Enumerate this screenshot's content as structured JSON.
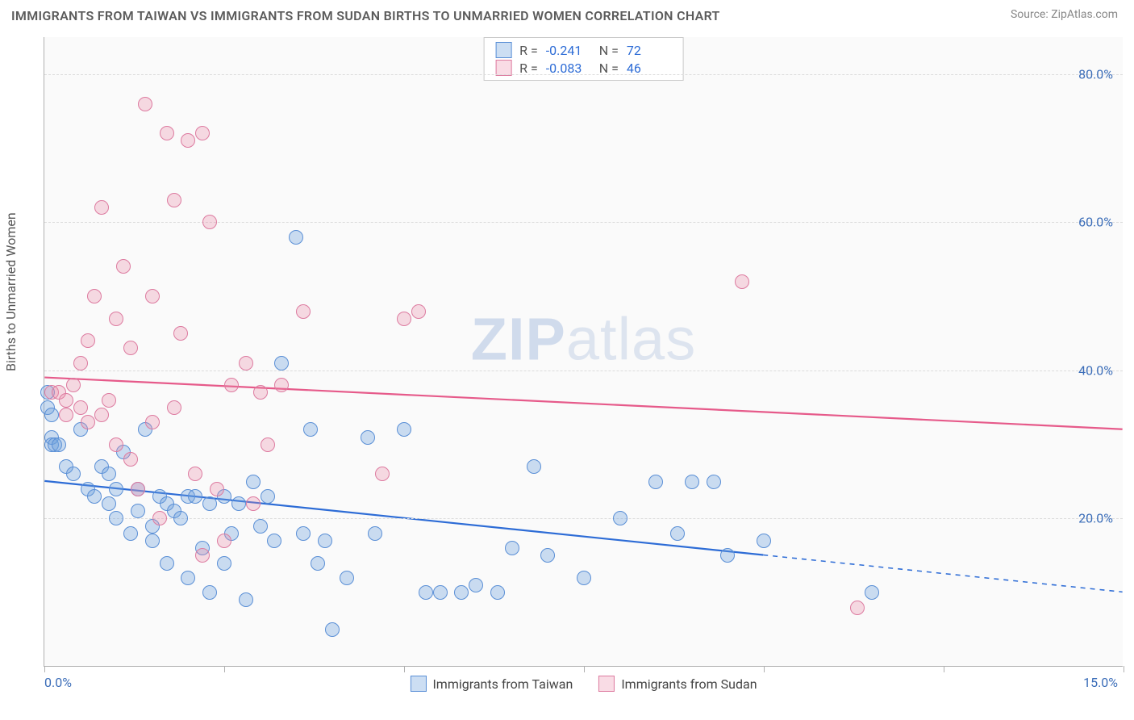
{
  "title": "IMMIGRANTS FROM TAIWAN VS IMMIGRANTS FROM SUDAN BIRTHS TO UNMARRIED WOMEN CORRELATION CHART",
  "source": "Source: ZipAtlas.com",
  "ylabel": "Births to Unmarried Women",
  "watermark_zip": "ZIP",
  "watermark_atlas": "atlas",
  "chart": {
    "type": "scatter",
    "background_color": "#fafafa",
    "grid_color": "#dcdcdc",
    "axis_color": "#b0b0b0",
    "tick_label_color": "#3b6db8",
    "xlim": [
      0,
      15
    ],
    "ylim": [
      0,
      85
    ],
    "ygrid": [
      20,
      40,
      60,
      80
    ],
    "ytick_labels": [
      "20.0%",
      "40.0%",
      "60.0%",
      "80.0%"
    ],
    "xticks": [
      0,
      2.5,
      5,
      7.5,
      10,
      12.5,
      15
    ],
    "xstart_label": "0.0%",
    "xend_label": "15.0%",
    "marker_radius": 9,
    "marker_stroke_width": 1.2,
    "trend_line_width": 2.2
  },
  "series": [
    {
      "name": "Immigrants from Taiwan",
      "fill": "rgba(108,160,220,0.35)",
      "stroke": "#5a8fd6",
      "trend_color": "#2d6cd6",
      "trend": {
        "y_at_x0": 25,
        "y_at_xmax": 10,
        "solid_until_x": 10
      },
      "stats": {
        "R": "-0.241",
        "N": "72"
      },
      "points": [
        [
          0.05,
          37
        ],
        [
          0.05,
          35
        ],
        [
          0.1,
          34
        ],
        [
          0.1,
          31
        ],
        [
          0.1,
          30
        ],
        [
          0.15,
          30
        ],
        [
          0.2,
          30
        ],
        [
          0.3,
          27
        ],
        [
          0.4,
          26
        ],
        [
          0.5,
          32
        ],
        [
          0.6,
          24
        ],
        [
          0.7,
          23
        ],
        [
          0.8,
          27
        ],
        [
          0.9,
          26
        ],
        [
          0.9,
          22
        ],
        [
          1.0,
          24
        ],
        [
          1.0,
          20
        ],
        [
          1.1,
          29
        ],
        [
          1.2,
          18
        ],
        [
          1.3,
          21
        ],
        [
          1.3,
          24
        ],
        [
          1.4,
          32
        ],
        [
          1.5,
          19
        ],
        [
          1.5,
          17
        ],
        [
          1.6,
          23
        ],
        [
          1.7,
          22
        ],
        [
          1.7,
          14
        ],
        [
          1.8,
          21
        ],
        [
          1.9,
          20
        ],
        [
          2.0,
          23
        ],
        [
          2.0,
          12
        ],
        [
          2.1,
          23
        ],
        [
          2.2,
          16
        ],
        [
          2.3,
          22
        ],
        [
          2.3,
          10
        ],
        [
          2.5,
          23
        ],
        [
          2.5,
          14
        ],
        [
          2.6,
          18
        ],
        [
          2.7,
          22
        ],
        [
          2.8,
          9
        ],
        [
          2.9,
          25
        ],
        [
          3.0,
          19
        ],
        [
          3.1,
          23
        ],
        [
          3.2,
          17
        ],
        [
          3.3,
          41
        ],
        [
          3.5,
          58
        ],
        [
          3.6,
          18
        ],
        [
          3.7,
          32
        ],
        [
          3.8,
          14
        ],
        [
          3.9,
          17
        ],
        [
          4.0,
          5
        ],
        [
          4.2,
          12
        ],
        [
          4.5,
          31
        ],
        [
          4.6,
          18
        ],
        [
          5.0,
          32
        ],
        [
          5.3,
          10
        ],
        [
          5.5,
          10
        ],
        [
          5.8,
          10
        ],
        [
          6.0,
          11
        ],
        [
          6.3,
          10
        ],
        [
          6.8,
          27
        ],
        [
          7.0,
          15
        ],
        [
          7.5,
          12
        ],
        [
          8.0,
          20
        ],
        [
          8.5,
          25
        ],
        [
          8.8,
          18
        ],
        [
          9.0,
          25
        ],
        [
          9.3,
          25
        ],
        [
          9.5,
          15
        ],
        [
          10.0,
          17
        ],
        [
          11.5,
          10
        ],
        [
          6.5,
          16
        ]
      ]
    },
    {
      "name": "Immigrants from Sudan",
      "fill": "rgba(235,140,170,0.30)",
      "stroke": "#dd7ba0",
      "trend_color": "#e65a8a",
      "trend": {
        "y_at_x0": 39,
        "y_at_xmax": 32,
        "solid_until_x": 15
      },
      "stats": {
        "R": "-0.083",
        "N": "46"
      },
      "points": [
        [
          0.1,
          37
        ],
        [
          0.2,
          37
        ],
        [
          0.3,
          36
        ],
        [
          0.3,
          34
        ],
        [
          0.4,
          38
        ],
        [
          0.5,
          35
        ],
        [
          0.5,
          41
        ],
        [
          0.6,
          44
        ],
        [
          0.6,
          33
        ],
        [
          0.7,
          50
        ],
        [
          0.8,
          62
        ],
        [
          0.8,
          34
        ],
        [
          0.9,
          36
        ],
        [
          1.0,
          47
        ],
        [
          1.0,
          30
        ],
        [
          1.1,
          54
        ],
        [
          1.2,
          43
        ],
        [
          1.2,
          28
        ],
        [
          1.3,
          24
        ],
        [
          1.4,
          76
        ],
        [
          1.5,
          50
        ],
        [
          1.5,
          33
        ],
        [
          1.6,
          20
        ],
        [
          1.7,
          72
        ],
        [
          1.8,
          63
        ],
        [
          1.8,
          35
        ],
        [
          1.9,
          45
        ],
        [
          2.0,
          71
        ],
        [
          2.1,
          26
        ],
        [
          2.2,
          15
        ],
        [
          2.3,
          60
        ],
        [
          2.4,
          24
        ],
        [
          2.5,
          17
        ],
        [
          2.6,
          38
        ],
        [
          2.8,
          41
        ],
        [
          2.9,
          22
        ],
        [
          3.0,
          37
        ],
        [
          3.1,
          30
        ],
        [
          3.3,
          38
        ],
        [
          3.6,
          48
        ],
        [
          4.7,
          26
        ],
        [
          5.0,
          47
        ],
        [
          5.2,
          48
        ],
        [
          9.7,
          52
        ],
        [
          11.3,
          8
        ],
        [
          2.2,
          72
        ]
      ]
    }
  ],
  "legend_labels": {
    "R": "R =",
    "N": "N ="
  }
}
